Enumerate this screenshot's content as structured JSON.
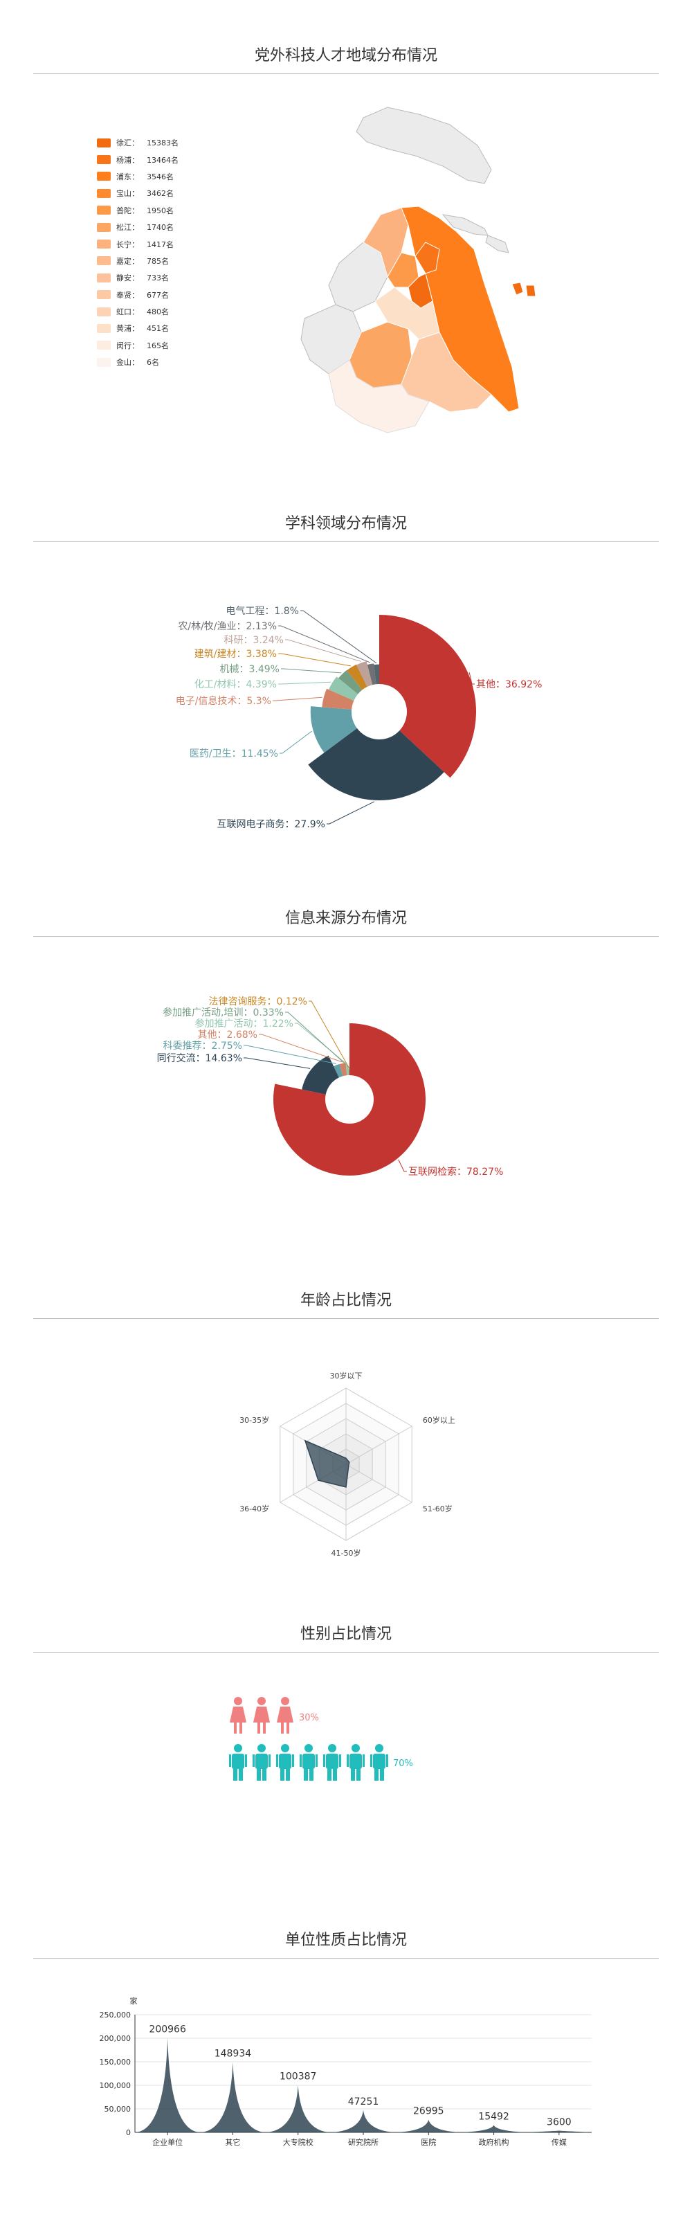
{
  "sections": {
    "region": "党外科技人才地域分布情况",
    "discipline": "学科领域分布情况",
    "source": "信息来源分布情况",
    "age": "年龄占比情况",
    "gender": "性别占比情况",
    "unit": "单位性质占比情况"
  },
  "colors": {
    "accent_orange": "#fd7e1a",
    "red": "#c23531",
    "navy": "#2f4554",
    "teal": "#61a0a8",
    "peach": "#d48265",
    "green": "#91c7ae",
    "olive": "#749f83",
    "amber": "#ca8622",
    "tan": "#bda29a",
    "slate": "#6e7074",
    "grey": "#546570",
    "female": "#f08080",
    "male": "#21bdbd"
  },
  "chart_data": [
    {
      "type": "map",
      "title": "党外科技人才地域分布情况",
      "unit": "名",
      "regions": [
        {
          "name": "徐汇",
          "value": 15383
        },
        {
          "name": "杨浦",
          "value": 13464
        },
        {
          "name": "浦东",
          "value": 3546
        },
        {
          "name": "宝山",
          "value": 3462
        },
        {
          "name": "普陀",
          "value": 1950
        },
        {
          "name": "松江",
          "value": 1740
        },
        {
          "name": "长宁",
          "value": 1417
        },
        {
          "name": "嘉定",
          "value": 785
        },
        {
          "name": "静安",
          "value": 733
        },
        {
          "name": "奉贤",
          "value": 677
        },
        {
          "name": "虹口",
          "value": 480
        },
        {
          "name": "黄浦",
          "value": 451
        },
        {
          "name": "闵行",
          "value": 165
        },
        {
          "name": "金山",
          "value": 6
        }
      ]
    },
    {
      "type": "pie",
      "title": "学科领域分布情况",
      "series": [
        {
          "name": "其他",
          "label": "其他：36.92%",
          "value": 36.92
        },
        {
          "name": "互联网电子商务",
          "label": "互联网电子商务：27.9%",
          "value": 27.9
        },
        {
          "name": "医药/卫生",
          "label": "医药/卫生：11.45%",
          "value": 11.45
        },
        {
          "name": "电子/信息技术",
          "label": "电子/信息技术：5.3%",
          "value": 5.3
        },
        {
          "name": "化工/材料",
          "label": "化工/材料：4.39%",
          "value": 4.39
        },
        {
          "name": "机械",
          "label": "机械：3.49%",
          "value": 3.49
        },
        {
          "name": "建筑/建材",
          "label": "建筑/建材：3.38%",
          "value": 3.38
        },
        {
          "name": "科研",
          "label": "科研：3.24%",
          "value": 3.24
        },
        {
          "name": "农/林/牧/渔业",
          "label": "农/林/牧/渔业：2.13%",
          "value": 2.13
        },
        {
          "name": "电气工程",
          "label": "电气工程：1.8%",
          "value": 1.8
        }
      ]
    },
    {
      "type": "pie",
      "title": "信息来源分布情况",
      "series": [
        {
          "name": "互联网检索",
          "label": "互联网检索：78.27%",
          "value": 78.27
        },
        {
          "name": "同行交流",
          "label": "同行交流：14.63%",
          "value": 14.63
        },
        {
          "name": "科委推荐",
          "label": "科委推荐：2.75%",
          "value": 2.75
        },
        {
          "name": "其他",
          "label": "其他：2.68%",
          "value": 2.68
        },
        {
          "name": "参加推广活动",
          "label": "参加推广活动：1.22%",
          "value": 1.22
        },
        {
          "name": "参加推广活动,培训",
          "label": "参加推广活动,培训：0.33%",
          "value": 0.33
        },
        {
          "name": "法律咨询服务",
          "label": "法律咨询服务：0.12%",
          "value": 0.12
        }
      ]
    },
    {
      "type": "radar",
      "title": "年龄占比情况",
      "indicators": [
        "30岁以下",
        "60岁以上",
        "51-60岁",
        "41-50岁",
        "36-40岁",
        "30-35岁"
      ],
      "values": [
        0.08,
        0.05,
        0.04,
        0.3,
        0.42,
        0.62
      ]
    },
    {
      "type": "pictorial",
      "title": "性别占比情况",
      "series": [
        {
          "name": "female",
          "label": "30%",
          "value": 30,
          "icons": 3
        },
        {
          "name": "male",
          "label": "70%",
          "value": 70,
          "icons": 7
        }
      ]
    },
    {
      "type": "area",
      "title": "单位性质占比情况",
      "ylabel": "家",
      "ylim": [
        0,
        250000
      ],
      "yticks": [
        "250,000",
        "200,000",
        "150,000",
        "100,000",
        "50,000",
        "0"
      ],
      "categories": [
        "企业单位",
        "其它",
        "大专院校",
        "研究院所",
        "医院",
        "政府机构",
        "传媒"
      ],
      "values": [
        200966,
        148934,
        100387,
        47251,
        26995,
        15492,
        3600
      ]
    }
  ]
}
